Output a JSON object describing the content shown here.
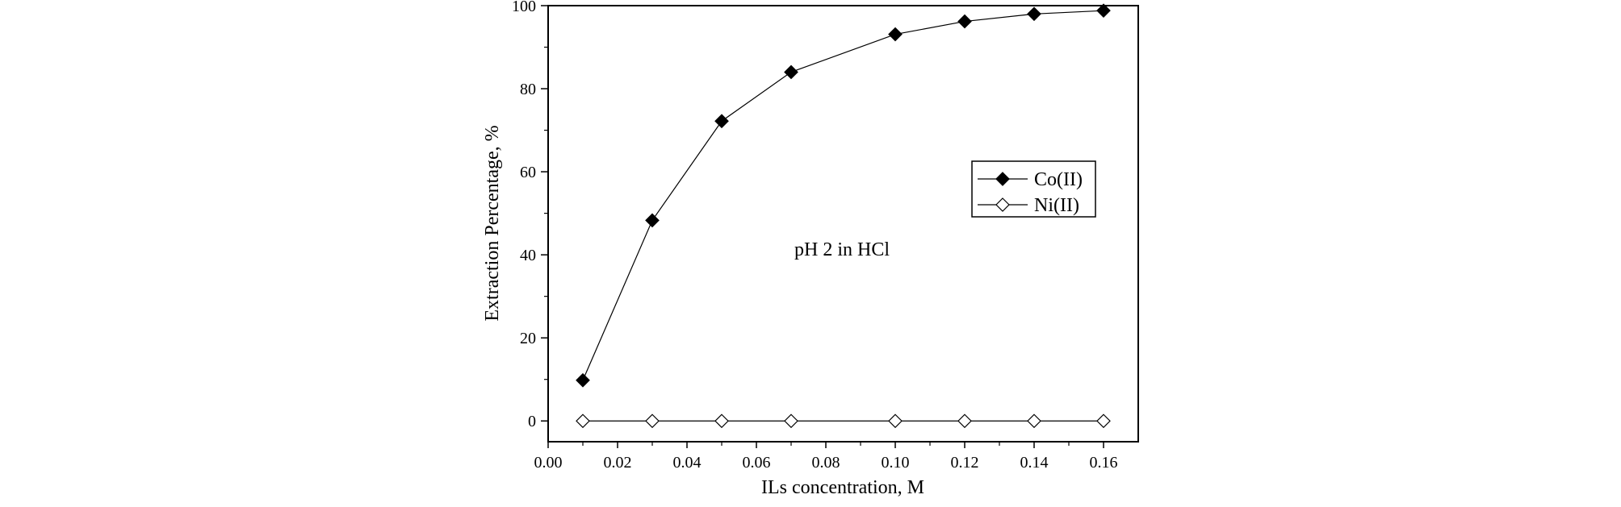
{
  "chart_data": {
    "type": "line",
    "xlabel": "ILs concentration, M",
    "ylabel": "Extraction Percentage, %",
    "annotation": "pH 2 in HCl",
    "xlim": [
      0.0,
      0.17
    ],
    "ylim": [
      -5,
      100
    ],
    "xticks": [
      0.0,
      0.02,
      0.04,
      0.06,
      0.08,
      0.1,
      0.12,
      0.14,
      0.16
    ],
    "xtick_labels": [
      "0.00",
      "0.02",
      "0.04",
      "0.06",
      "0.08",
      "0.10",
      "0.12",
      "0.14",
      "0.16"
    ],
    "yticks": [
      0,
      20,
      40,
      60,
      80,
      100
    ],
    "ytick_labels": [
      "0",
      "20",
      "40",
      "60",
      "80",
      "100"
    ],
    "grid": false,
    "legend_position": "center-right",
    "series": [
      {
        "name": "Co(II)",
        "marker": "filled-diamond",
        "color": "#000000",
        "x": [
          0.01,
          0.03,
          0.05,
          0.07,
          0.1,
          0.12,
          0.14,
          0.16
        ],
        "y": [
          9.8,
          48.3,
          72.2,
          84.0,
          93.1,
          96.2,
          98.0,
          98.8
        ]
      },
      {
        "name": "Ni(II)",
        "marker": "open-diamond",
        "color": "#000000",
        "x": [
          0.01,
          0.03,
          0.05,
          0.07,
          0.1,
          0.12,
          0.14,
          0.16
        ],
        "y": [
          0,
          0,
          0,
          0,
          0,
          0,
          0,
          0
        ]
      }
    ]
  }
}
